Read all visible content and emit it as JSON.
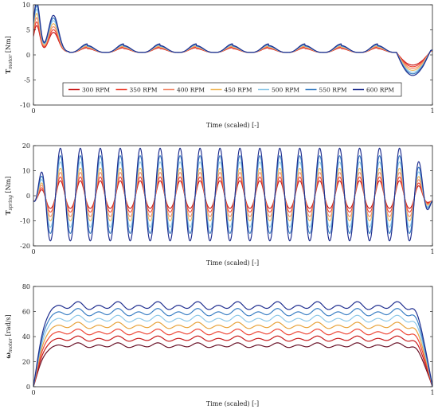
{
  "chart_data": [
    {
      "type": "line",
      "id": "motor-torque",
      "title": "",
      "xlabel": "Time (scaled) [-]",
      "ylabel": "T",
      "ylabel_sub": "motor",
      "ylabel_unit": "[Nm]",
      "xlim": [
        0,
        1
      ],
      "ylim": [
        -10,
        10
      ],
      "xticks": [
        "0",
        "1"
      ],
      "yticks": [
        "10",
        "5",
        "0",
        "-5",
        "-10"
      ],
      "ytick_values": [
        10,
        5,
        0,
        -5,
        -10
      ],
      "grid": false,
      "legend": "bottom-center, single row inside axes",
      "pattern": "spike-decay then periodic small bumps then negative dip",
      "cycles": 11,
      "peak_at_600rpm": 10.5,
      "bump_amplitude_at_600rpm": 1.7,
      "end_dip_at_600rpm": -5.2,
      "series": [
        {
          "name": "300 RPM",
          "color": "#c81a1a",
          "scale": 0.55
        },
        {
          "name": "350 RPM",
          "color": "#ee4433",
          "scale": 0.62
        },
        {
          "name": "400 RPM",
          "color": "#f28b6c",
          "scale": 0.7
        },
        {
          "name": "450 RPM",
          "color": "#f0b95c",
          "scale": 0.78
        },
        {
          "name": "500 RPM",
          "color": "#8ec8e8",
          "scale": 0.86
        },
        {
          "name": "550 RPM",
          "color": "#3b7fc4",
          "scale": 0.93
        },
        {
          "name": "600 RPM",
          "color": "#1f2e8f",
          "scale": 1.0
        }
      ]
    },
    {
      "type": "line",
      "id": "spring-torque",
      "title": "",
      "xlabel": "Time (scaled) [-]",
      "ylabel": "T",
      "ylabel_sub": "spring",
      "ylabel_unit": "[Nm]",
      "xlim": [
        0,
        1
      ],
      "ylim": [
        -20,
        20
      ],
      "xticks": [
        "0",
        "1"
      ],
      "yticks": [
        "20",
        "10",
        "0",
        "-10",
        "-20"
      ],
      "ytick_values": [
        20,
        10,
        0,
        -10,
        -20
      ],
      "grid": false,
      "oscillation_cycles": 20,
      "amplitude_at_600rpm": 18.5,
      "amplitude_at_300rpm": 5.5,
      "offset": -2,
      "series": [
        {
          "name": "300 RPM",
          "color": "#c81a1a",
          "amplitude": 5.5
        },
        {
          "name": "350 RPM",
          "color": "#ee4433",
          "amplitude": 7.0
        },
        {
          "name": "400 RPM",
          "color": "#f28b6c",
          "amplitude": 8.8
        },
        {
          "name": "450 RPM",
          "color": "#f0b95c",
          "amplitude": 10.5
        },
        {
          "name": "500 RPM",
          "color": "#8ec8e8",
          "amplitude": 13.0
        },
        {
          "name": "550 RPM",
          "color": "#3b7fc4",
          "amplitude": 15.5
        },
        {
          "name": "600 RPM",
          "color": "#1f2e8f",
          "amplitude": 18.5
        }
      ]
    },
    {
      "type": "line",
      "id": "motor-speed",
      "title": "",
      "xlabel": "Time (scaled) [-]",
      "ylabel": "ω",
      "ylabel_sub": "motor",
      "ylabel_unit": "[rad/s]",
      "xlim": [
        0,
        1
      ],
      "ylim": [
        0,
        80
      ],
      "xticks": [
        "0",
        "1"
      ],
      "yticks": [
        "80",
        "60",
        "40",
        "20",
        "0"
      ],
      "ytick_values": [
        80,
        60,
        40,
        20,
        0
      ],
      "grid": false,
      "ripple_cycles": 20,
      "series": [
        {
          "name": "300 RPM",
          "color": "#6a1228",
          "level": 31.4,
          "ripple": 1.8
        },
        {
          "name": "350 RPM",
          "color": "#c81a1a",
          "level": 36.6,
          "ripple": 2.0
        },
        {
          "name": "400 RPM",
          "color": "#ee4433",
          "level": 41.9,
          "ripple": 2.2
        },
        {
          "name": "450 RPM",
          "color": "#e8a33c",
          "level": 47.1,
          "ripple": 2.4
        },
        {
          "name": "500 RPM",
          "color": "#8ec8e8",
          "level": 52.4,
          "ripple": 2.6
        },
        {
          "name": "550 RPM",
          "color": "#3b7fc4",
          "level": 57.6,
          "ripple": 2.8
        },
        {
          "name": "600 RPM",
          "color": "#1f2e8f",
          "level": 62.8,
          "ripple": 3.0
        }
      ]
    }
  ]
}
